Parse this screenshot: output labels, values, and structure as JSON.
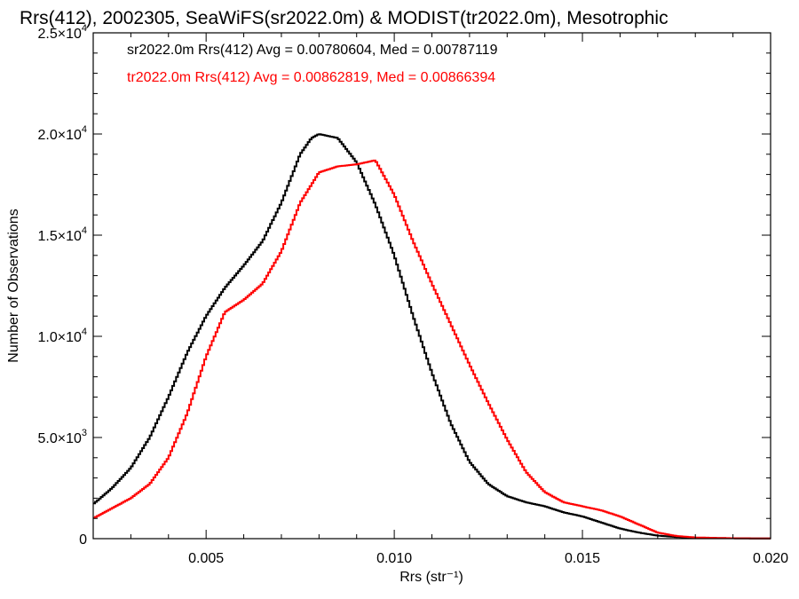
{
  "chart_data": {
    "type": "line",
    "title": "Rrs(412), 2002305, SeaWiFS(sr2022.0m) & MODIST(tr2022.0m), Mesotrophic",
    "xlabel": "Rrs (str⁻¹)",
    "ylabel": "Number of Observations",
    "xlim": [
      0.002,
      0.02
    ],
    "ylim": [
      0,
      25000
    ],
    "x_ticks": [
      {
        "value": 0.005,
        "label": "0.005"
      },
      {
        "value": 0.01,
        "label": "0.010"
      },
      {
        "value": 0.015,
        "label": "0.015"
      },
      {
        "value": 0.02,
        "label": "0.020"
      }
    ],
    "y_ticks": [
      {
        "value": 0,
        "mant": "0",
        "exp": ""
      },
      {
        "value": 5000,
        "mant": "5.0×10",
        "exp": "3"
      },
      {
        "value": 10000,
        "mant": "1.0×10",
        "exp": "4"
      },
      {
        "value": 15000,
        "mant": "1.5×10",
        "exp": "4"
      },
      {
        "value": 20000,
        "mant": "2.0×10",
        "exp": "4"
      },
      {
        "value": 25000,
        "mant": "2.5×10",
        "exp": "4"
      }
    ],
    "annotations": [
      {
        "text": "sr2022.0m Rrs(412) Avg = 0.00780604, Med = 0.00787119",
        "color": "#000000"
      },
      {
        "text": "tr2022.0m Rrs(412) Avg = 0.00862819, Med = 0.00866394",
        "color": "#ff0000"
      }
    ],
    "series": [
      {
        "color": "#000000",
        "x": [
          0.002,
          0.0025,
          0.003,
          0.0035,
          0.004,
          0.0045,
          0.005,
          0.0055,
          0.006,
          0.0065,
          0.007,
          0.0075,
          0.0078,
          0.008,
          0.0085,
          0.009,
          0.0095,
          0.01,
          0.0105,
          0.011,
          0.0115,
          0.012,
          0.0125,
          0.013,
          0.0135,
          0.014,
          0.0145,
          0.015,
          0.0155,
          0.016,
          0.0165,
          0.017,
          0.0175,
          0.018,
          0.019,
          0.02
        ],
        "y": [
          1700,
          2500,
          3500,
          5000,
          7000,
          9200,
          11000,
          12400,
          13500,
          14700,
          16600,
          19000,
          19800,
          20000,
          19800,
          18600,
          16500,
          14000,
          11000,
          8200,
          5700,
          3800,
          2700,
          2100,
          1800,
          1600,
          1300,
          1100,
          800,
          500,
          300,
          150,
          80,
          40,
          20,
          10
        ]
      },
      {
        "color": "#ff0000",
        "x": [
          0.002,
          0.0025,
          0.003,
          0.0035,
          0.004,
          0.0045,
          0.005,
          0.0055,
          0.006,
          0.0065,
          0.007,
          0.0075,
          0.008,
          0.0085,
          0.009,
          0.0095,
          0.01,
          0.0105,
          0.011,
          0.0115,
          0.012,
          0.0125,
          0.013,
          0.0135,
          0.014,
          0.0145,
          0.015,
          0.0155,
          0.016,
          0.0165,
          0.017,
          0.0175,
          0.018,
          0.019,
          0.02
        ],
        "y": [
          1000,
          1500,
          2000,
          2700,
          4000,
          6200,
          9000,
          11200,
          11800,
          12600,
          14200,
          16600,
          18100,
          18400,
          18500,
          18700,
          17000,
          14700,
          12600,
          10600,
          8600,
          6700,
          4900,
          3300,
          2300,
          1800,
          1600,
          1400,
          1100,
          700,
          300,
          130,
          60,
          20,
          10
        ]
      }
    ]
  }
}
